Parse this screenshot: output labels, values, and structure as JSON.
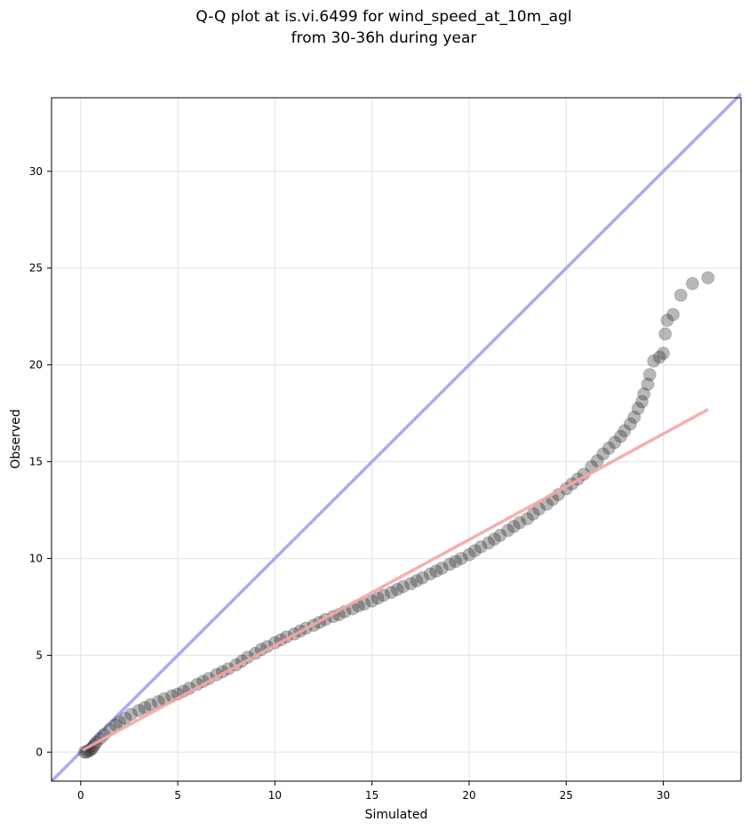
{
  "chart_data": {
    "type": "scatter",
    "title_lines": [
      "Q-Q plot at is.vi.6499 for wind_speed_at_10m_agl",
      "from 30-36h during year"
    ],
    "xlabel": "Simulated",
    "ylabel": "Observed",
    "xlim": [
      -1.5,
      34.0
    ],
    "ylim": [
      -1.5,
      33.8
    ],
    "xticks": [
      0,
      5,
      10,
      15,
      20,
      25,
      30
    ],
    "yticks": [
      0,
      5,
      10,
      15,
      20,
      25,
      30
    ],
    "grid": true,
    "identity_line": {
      "color": "#aaaaf5",
      "from": [
        -1.5,
        -1.5
      ],
      "to": [
        34.0,
        34.0
      ]
    },
    "fit_line": {
      "color": "#f7a5a5",
      "from": [
        0.1,
        0.1
      ],
      "to": [
        32.3,
        17.7
      ]
    },
    "point_color": "#222222",
    "series": [
      {
        "points": [
          [
            0.2,
            0.0
          ],
          [
            0.3,
            0.0
          ],
          [
            0.4,
            0.05
          ],
          [
            0.5,
            0.1
          ],
          [
            0.6,
            0.2
          ],
          [
            0.7,
            0.35
          ],
          [
            0.8,
            0.5
          ],
          [
            1.0,
            0.7
          ],
          [
            1.2,
            0.9
          ],
          [
            1.5,
            1.15
          ],
          [
            1.8,
            1.4
          ],
          [
            2.0,
            1.55
          ],
          [
            2.3,
            1.75
          ],
          [
            2.6,
            1.95
          ],
          [
            3.0,
            2.15
          ],
          [
            3.3,
            2.3
          ],
          [
            3.6,
            2.45
          ],
          [
            4.0,
            2.6
          ],
          [
            4.3,
            2.75
          ],
          [
            4.7,
            2.9
          ],
          [
            5.0,
            3.0
          ],
          [
            5.3,
            3.15
          ],
          [
            5.6,
            3.3
          ],
          [
            6.0,
            3.5
          ],
          [
            6.3,
            3.65
          ],
          [
            6.6,
            3.8
          ],
          [
            7.0,
            4.0
          ],
          [
            7.3,
            4.15
          ],
          [
            7.6,
            4.3
          ],
          [
            8.0,
            4.5
          ],
          [
            8.3,
            4.7
          ],
          [
            8.6,
            4.9
          ],
          [
            9.0,
            5.1
          ],
          [
            9.3,
            5.3
          ],
          [
            9.6,
            5.45
          ],
          [
            10.0,
            5.65
          ],
          [
            10.3,
            5.8
          ],
          [
            10.6,
            5.95
          ],
          [
            11.0,
            6.1
          ],
          [
            11.3,
            6.25
          ],
          [
            11.6,
            6.4
          ],
          [
            12.0,
            6.55
          ],
          [
            12.3,
            6.7
          ],
          [
            12.6,
            6.85
          ],
          [
            13.0,
            7.0
          ],
          [
            13.3,
            7.1
          ],
          [
            13.6,
            7.25
          ],
          [
            14.0,
            7.4
          ],
          [
            14.3,
            7.55
          ],
          [
            14.6,
            7.65
          ],
          [
            15.0,
            7.8
          ],
          [
            15.3,
            7.95
          ],
          [
            15.6,
            8.1
          ],
          [
            16.0,
            8.25
          ],
          [
            16.3,
            8.4
          ],
          [
            16.6,
            8.55
          ],
          [
            17.0,
            8.7
          ],
          [
            17.3,
            8.85
          ],
          [
            17.6,
            9.0
          ],
          [
            18.0,
            9.2
          ],
          [
            18.3,
            9.35
          ],
          [
            18.6,
            9.5
          ],
          [
            19.0,
            9.7
          ],
          [
            19.3,
            9.85
          ],
          [
            19.6,
            10.0
          ],
          [
            20.0,
            10.2
          ],
          [
            20.3,
            10.4
          ],
          [
            20.6,
            10.6
          ],
          [
            21.0,
            10.8
          ],
          [
            21.3,
            11.0
          ],
          [
            21.6,
            11.2
          ],
          [
            22.0,
            11.45
          ],
          [
            22.3,
            11.65
          ],
          [
            22.6,
            11.85
          ],
          [
            23.0,
            12.05
          ],
          [
            23.3,
            12.3
          ],
          [
            23.6,
            12.55
          ],
          [
            24.0,
            12.8
          ],
          [
            24.3,
            13.05
          ],
          [
            24.6,
            13.3
          ],
          [
            25.0,
            13.6
          ],
          [
            25.3,
            13.85
          ],
          [
            25.6,
            14.1
          ],
          [
            25.9,
            14.35
          ],
          [
            26.3,
            14.75
          ],
          [
            26.6,
            15.05
          ],
          [
            26.9,
            15.4
          ],
          [
            27.2,
            15.7
          ],
          [
            27.5,
            16.0
          ],
          [
            27.8,
            16.3
          ],
          [
            28.0,
            16.6
          ],
          [
            28.3,
            16.95
          ],
          [
            28.5,
            17.3
          ],
          [
            28.7,
            17.75
          ],
          [
            28.9,
            18.1
          ],
          [
            29.0,
            18.5
          ],
          [
            29.2,
            19.0
          ],
          [
            29.3,
            19.5
          ],
          [
            29.5,
            20.2
          ],
          [
            29.8,
            20.4
          ],
          [
            30.0,
            20.6
          ],
          [
            30.1,
            21.6
          ],
          [
            30.2,
            22.3
          ],
          [
            30.5,
            22.6
          ],
          [
            30.9,
            23.6
          ],
          [
            31.5,
            24.2
          ],
          [
            32.3,
            24.5
          ]
        ]
      }
    ]
  }
}
